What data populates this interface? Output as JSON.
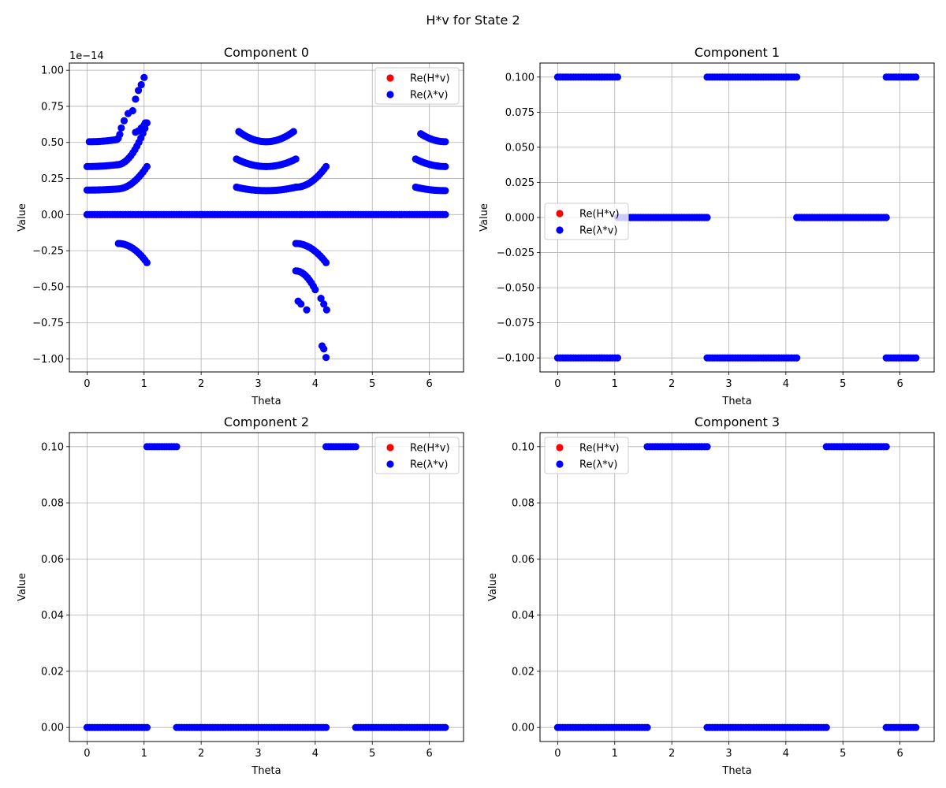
{
  "figure": {
    "title": "H*v for State 2"
  },
  "chart_data": [
    {
      "type": "scatter",
      "title": "Component 0",
      "xlabel": "Theta",
      "ylabel": "Value",
      "xlim": [
        -0.31,
        6.6
      ],
      "ylim": [
        -1.09,
        1.05
      ],
      "y_multiplier_label": "1e−14",
      "xticks": [
        0,
        1,
        2,
        3,
        4,
        5,
        6
      ],
      "yticks": [
        -1.0,
        -0.75,
        -0.5,
        -0.25,
        0.0,
        0.25,
        0.5,
        0.75,
        1.0
      ],
      "ytick_labels": [
        "−1.00",
        "−0.75",
        "−0.50",
        "−0.25",
        "0.00",
        "0.25",
        "0.50",
        "0.75",
        "1.00"
      ],
      "grid": true,
      "legend": "top-right",
      "series": [
        {
          "name": "Re(H*v)",
          "color": "#ff0000",
          "ranges": [
            [
              0.0,
              6.28,
              0.0
            ]
          ]
        },
        {
          "name": "Re(λ*v)",
          "color": "#0000ff",
          "ranges": [
            [
              0.0,
              6.28,
              0.0
            ]
          ],
          "arcs": [
            [
              0.0,
              0.52,
              0.17,
              0.177
            ],
            [
              0.52,
              1.05,
              0.177,
              0.333
            ],
            [
              0.0,
              0.52,
              0.333,
              0.345
            ],
            [
              0.52,
              1.05,
              0.345,
              0.635
            ],
            [
              0.04,
              0.52,
              0.505,
              0.52
            ],
            [
              0.52,
              0.6,
              0.52,
              0.6
            ],
            [
              0.55,
              1.05,
              -0.2,
              -0.333
            ],
            [
              2.62,
              3.14,
              0.19,
              0.166
            ],
            [
              3.14,
              3.66,
              0.166,
              0.19
            ],
            [
              3.66,
              4.19,
              0.19,
              0.333
            ],
            [
              2.62,
              3.14,
              0.385,
              0.333
            ],
            [
              3.14,
              3.66,
              0.333,
              0.385
            ],
            [
              2.66,
              3.14,
              0.575,
              0.505
            ],
            [
              3.14,
              3.62,
              0.505,
              0.575
            ],
            [
              3.66,
              4.19,
              -0.2,
              -0.333
            ],
            [
              3.66,
              4.0,
              -0.39,
              -0.52
            ],
            [
              5.76,
              6.28,
              0.19,
              0.166
            ],
            [
              5.76,
              6.28,
              0.385,
              0.333
            ],
            [
              5.85,
              6.28,
              0.56,
              0.505
            ]
          ],
          "points": [
            [
              0.65,
              0.65
            ],
            [
              0.72,
              0.7
            ],
            [
              0.8,
              0.72
            ],
            [
              0.85,
              0.8
            ],
            [
              0.9,
              0.86
            ],
            [
              0.95,
              0.9
            ],
            [
              1.0,
              0.95
            ],
            [
              0.85,
              0.57
            ],
            [
              0.9,
              0.58
            ],
            [
              0.95,
              0.6
            ],
            [
              1.0,
              0.62
            ],
            [
              1.02,
              0.635
            ],
            [
              3.7,
              -0.6
            ],
            [
              3.75,
              -0.62
            ],
            [
              3.85,
              -0.66
            ],
            [
              4.1,
              -0.58
            ],
            [
              4.15,
              -0.62
            ],
            [
              4.2,
              -0.66
            ],
            [
              4.12,
              -0.91
            ],
            [
              4.15,
              -0.93
            ],
            [
              4.19,
              -0.99
            ]
          ]
        }
      ]
    },
    {
      "type": "scatter",
      "title": "Component 1",
      "xlabel": "Theta",
      "ylabel": "Value",
      "xlim": [
        -0.31,
        6.6
      ],
      "ylim": [
        -0.11,
        0.11
      ],
      "xticks": [
        0,
        1,
        2,
        3,
        4,
        5,
        6
      ],
      "yticks": [
        -0.1,
        -0.075,
        -0.05,
        -0.025,
        0.0,
        0.025,
        0.05,
        0.075,
        0.1
      ],
      "ytick_labels": [
        "−0.100",
        "−0.075",
        "−0.050",
        "−0.025",
        "0.000",
        "0.025",
        "0.050",
        "0.075",
        "0.100"
      ],
      "grid": true,
      "legend": "center-left",
      "series": [
        {
          "name": "Re(H*v)",
          "color": "#ff0000",
          "ranges": []
        },
        {
          "name": "Re(λ*v)",
          "color": "#0000ff",
          "ranges": [
            [
              0.0,
              1.05,
              0.1
            ],
            [
              0.0,
              1.05,
              -0.1
            ],
            [
              1.05,
              2.62,
              0.0
            ],
            [
              2.62,
              4.19,
              0.1
            ],
            [
              2.62,
              4.19,
              -0.1
            ],
            [
              4.19,
              5.76,
              0.0
            ],
            [
              5.76,
              6.28,
              0.1
            ],
            [
              5.76,
              6.28,
              -0.1
            ]
          ]
        }
      ]
    },
    {
      "type": "scatter",
      "title": "Component 2",
      "xlabel": "Theta",
      "ylabel": "Value",
      "xlim": [
        -0.31,
        6.6
      ],
      "ylim": [
        -0.005,
        0.105
      ],
      "xticks": [
        0,
        1,
        2,
        3,
        4,
        5,
        6
      ],
      "yticks": [
        0.0,
        0.02,
        0.04,
        0.06,
        0.08,
        0.1
      ],
      "ytick_labels": [
        "0.00",
        "0.02",
        "0.04",
        "0.06",
        "0.08",
        "0.10"
      ],
      "grid": true,
      "legend": "top-right",
      "series": [
        {
          "name": "Re(H*v)",
          "color": "#ff0000",
          "ranges": []
        },
        {
          "name": "Re(λ*v)",
          "color": "#0000ff",
          "ranges": [
            [
              0.0,
              1.05,
              0.0
            ],
            [
              1.05,
              1.57,
              0.1
            ],
            [
              1.57,
              4.19,
              0.0
            ],
            [
              4.19,
              4.71,
              0.1
            ],
            [
              4.71,
              6.28,
              0.0
            ]
          ]
        }
      ]
    },
    {
      "type": "scatter",
      "title": "Component 3",
      "xlabel": "Theta",
      "ylabel": "Value",
      "xlim": [
        -0.31,
        6.6
      ],
      "ylim": [
        -0.005,
        0.105
      ],
      "xticks": [
        0,
        1,
        2,
        3,
        4,
        5,
        6
      ],
      "yticks": [
        0.0,
        0.02,
        0.04,
        0.06,
        0.08,
        0.1
      ],
      "ytick_labels": [
        "0.00",
        "0.02",
        "0.04",
        "0.06",
        "0.08",
        "0.10"
      ],
      "grid": true,
      "legend": "top-left",
      "series": [
        {
          "name": "Re(H*v)",
          "color": "#ff0000",
          "ranges": []
        },
        {
          "name": "Re(λ*v)",
          "color": "#0000ff",
          "ranges": [
            [
              0.0,
              1.57,
              0.0
            ],
            [
              1.57,
              2.62,
              0.1
            ],
            [
              2.62,
              4.71,
              0.0
            ],
            [
              4.71,
              5.76,
              0.1
            ],
            [
              5.76,
              6.28,
              0.0
            ]
          ]
        }
      ]
    }
  ]
}
